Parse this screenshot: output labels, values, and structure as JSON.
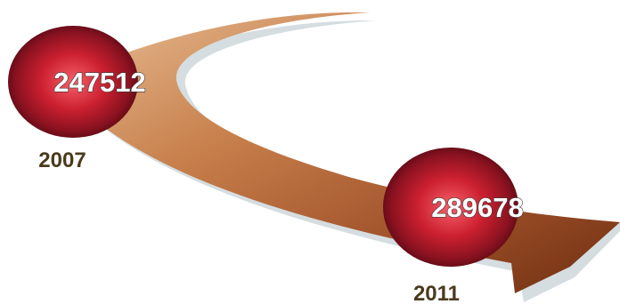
{
  "milestones": [
    {
      "year": "2007",
      "value": "247512"
    },
    {
      "year": "2011",
      "value": "289678"
    }
  ],
  "colors": {
    "arrow_light": "#e2b48a",
    "arrow_mid": "#b8683a",
    "arrow_dark": "#6e2e10",
    "arrow_shadow": "#d5dde0",
    "bubble_center": "#f2525e",
    "bubble_mid": "#c41a2a",
    "bubble_edge": "#5a0a14",
    "year_text": "#4a3a1e"
  }
}
